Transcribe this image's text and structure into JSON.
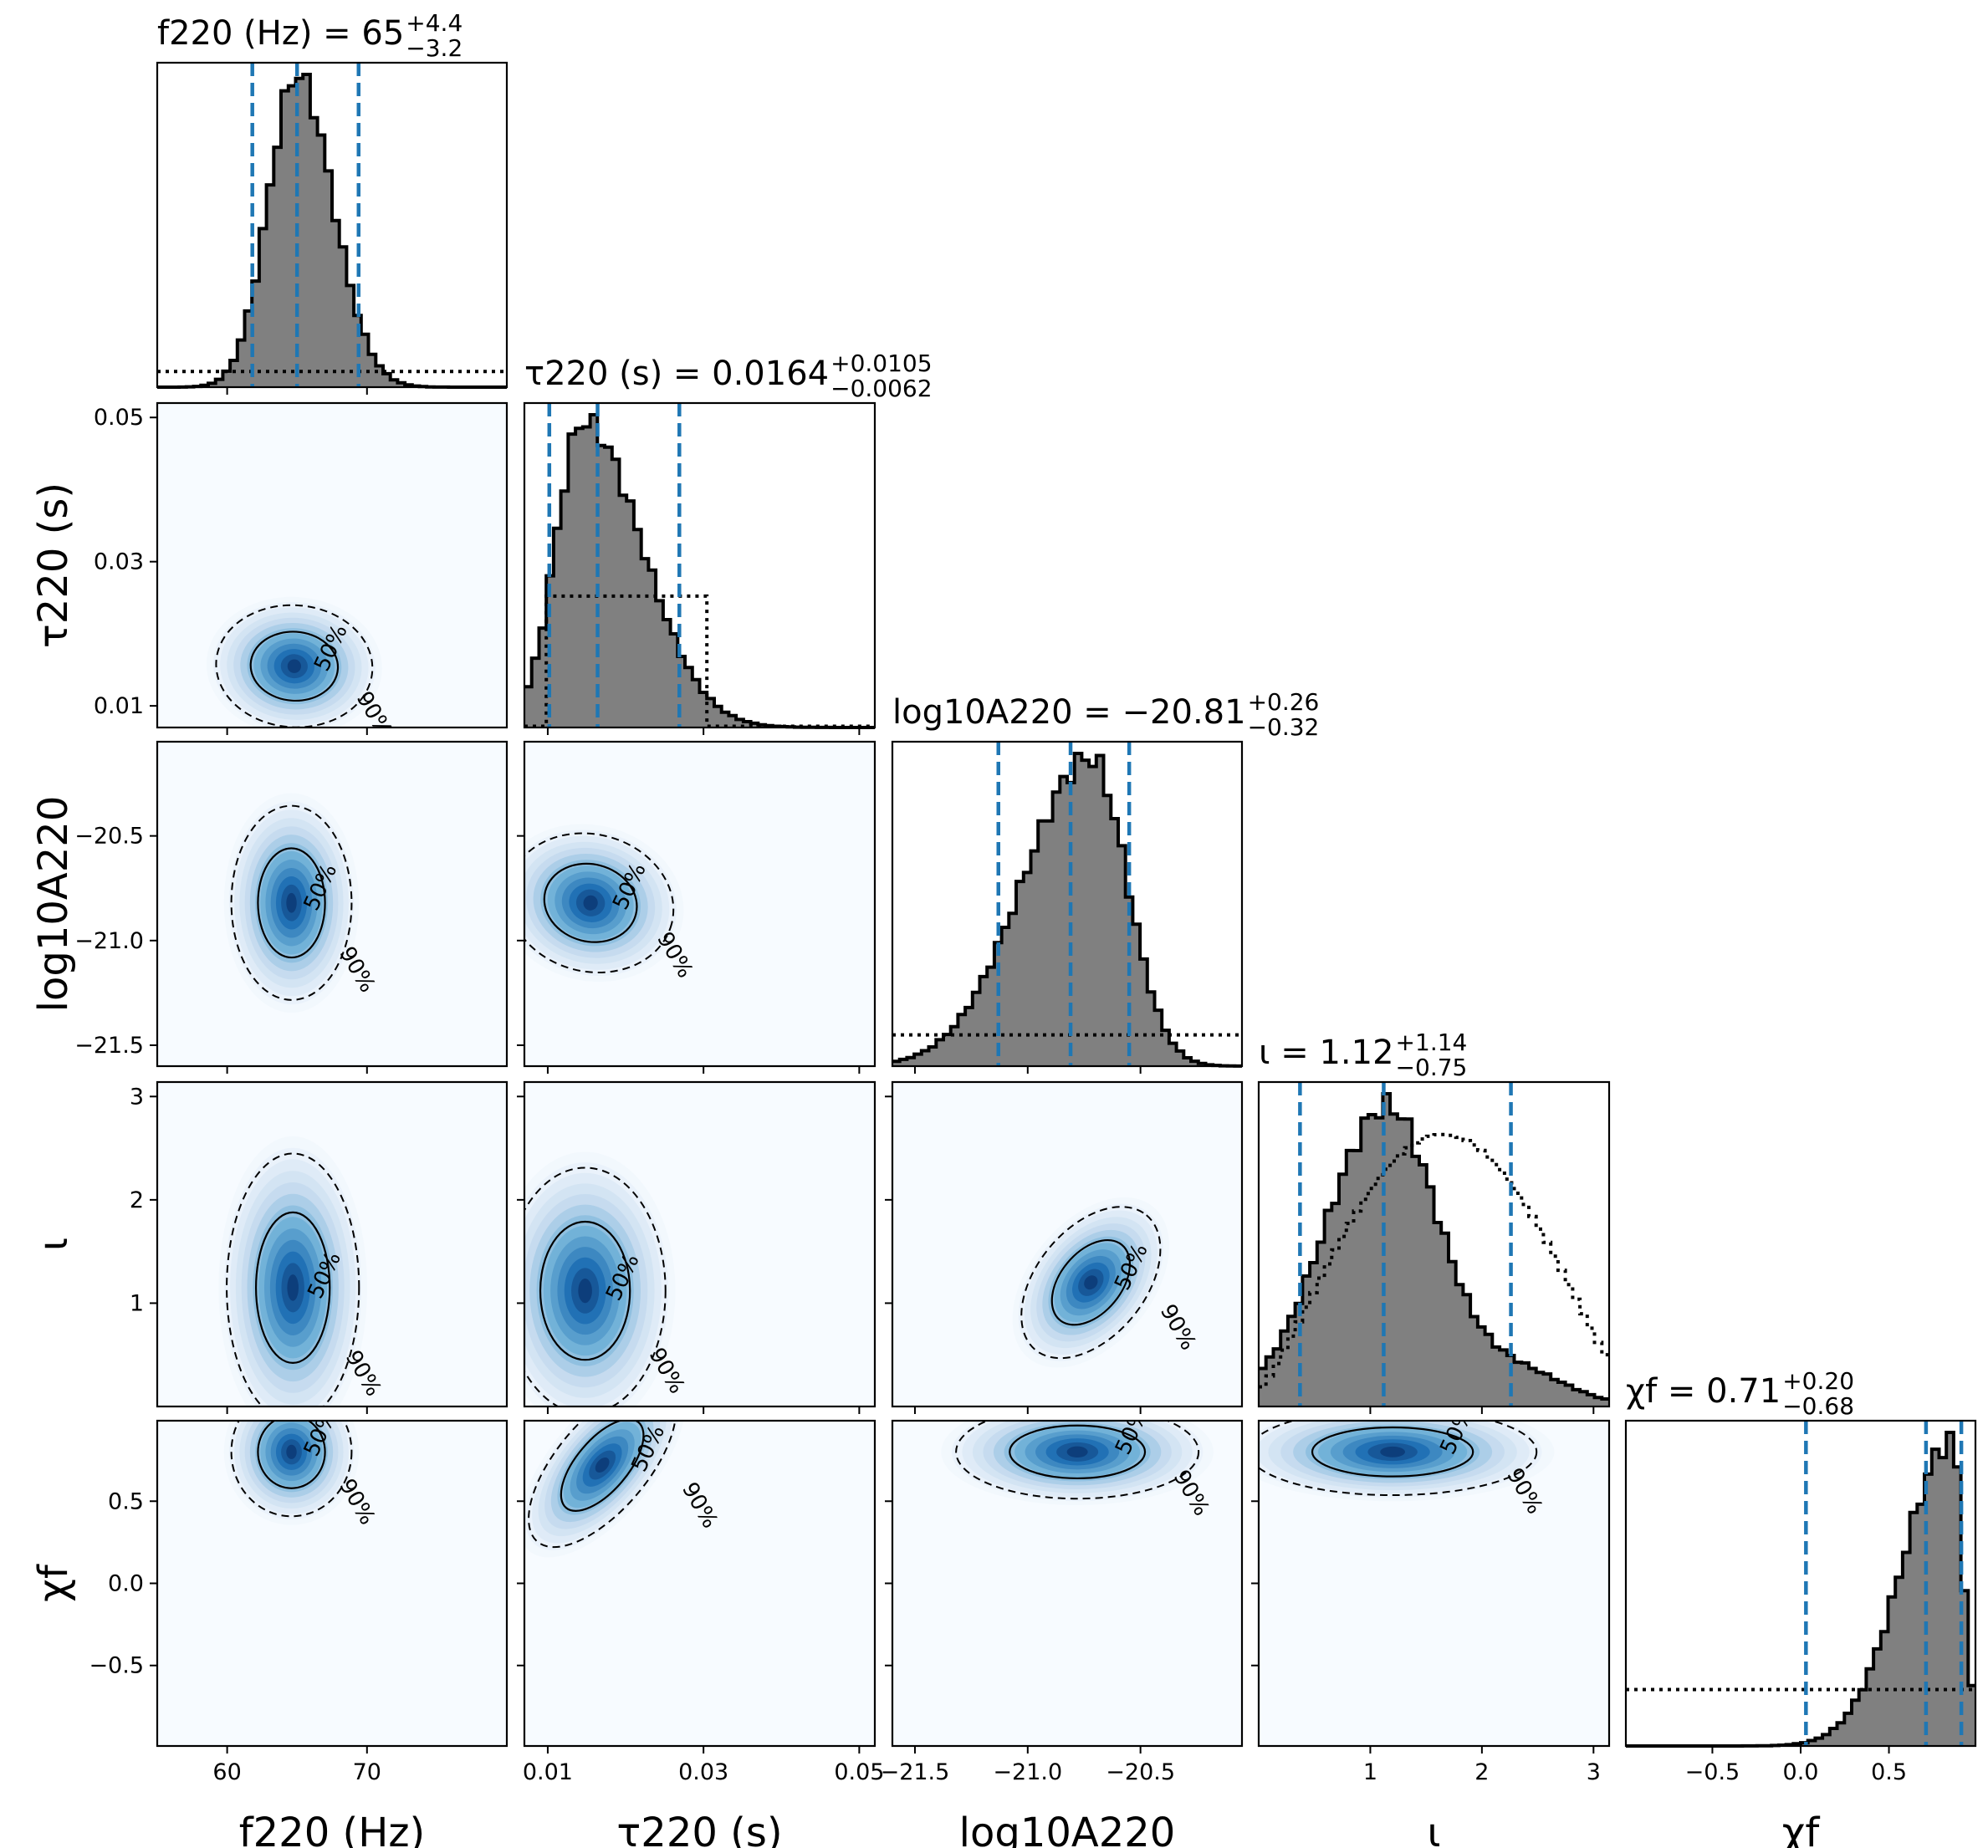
{
  "chart_data": {
    "type": "corner",
    "parameters": [
      {
        "key": "f220",
        "axis_label": "f220 (Hz)",
        "title_name": "f220 (Hz) = 65",
        "median": 65,
        "err_plus": "+4.4",
        "err_minus": "−3.2",
        "range": [
          55,
          80
        ],
        "ticks": [
          60,
          70
        ],
        "tick_labels": [
          "60",
          "70"
        ],
        "quantiles": [
          61.8,
          65,
          69.4
        ]
      },
      {
        "key": "tau220",
        "axis_label": "τ220 (s)",
        "title_name": "τ220 (s) = 0.0164",
        "median": 0.0164,
        "err_plus": "+0.0105",
        "err_minus": "−0.0062",
        "range": [
          0.007,
          0.052
        ],
        "ticks": [
          0.01,
          0.03,
          0.05
        ],
        "tick_labels": [
          "0.01",
          "0.03",
          "0.05"
        ],
        "quantiles": [
          0.0102,
          0.0164,
          0.0269
        ]
      },
      {
        "key": "logA220",
        "axis_label": "log10A220",
        "title_name": "log10A220 = −20.81",
        "median": -20.81,
        "err_plus": "+0.26",
        "err_minus": "−0.32",
        "range": [
          -21.6,
          -20.05
        ],
        "ticks": [
          -21.5,
          -21.0,
          -20.5
        ],
        "tick_labels": [
          "−21.5",
          "−21.0",
          "−20.5"
        ],
        "quantiles": [
          -21.13,
          -20.81,
          -20.55
        ]
      },
      {
        "key": "iota",
        "axis_label": "ι",
        "title_name": "ι = 1.12",
        "median": 1.12,
        "err_plus": "+1.14",
        "err_minus": "−0.75",
        "range": [
          0.0,
          3.14
        ],
        "ticks": [
          1,
          2,
          3
        ],
        "tick_labels": [
          "1",
          "2",
          "3"
        ],
        "quantiles": [
          0.37,
          1.12,
          2.26
        ]
      },
      {
        "key": "chif",
        "axis_label": "χf",
        "title_name": "χf = 0.71",
        "median": 0.71,
        "err_plus": "+0.20",
        "err_minus": "−0.68",
        "range": [
          -0.99,
          0.99
        ],
        "ticks": [
          -0.5,
          0.0,
          0.5
        ],
        "tick_labels": [
          "−0.5",
          "0.0",
          "0.5"
        ],
        "quantiles": [
          0.03,
          0.71,
          0.91
        ]
      }
    ],
    "y_tick_labels": {
      "tau220": [
        "0.01",
        "0.03",
        "0.05"
      ],
      "logA220": [
        "−21.5",
        "−21.0",
        "−20.5"
      ],
      "iota": [
        "1",
        "2",
        "3"
      ],
      "chif": [
        "−0.5",
        "0.0",
        "0.5"
      ]
    },
    "histograms": {
      "f220": {
        "posterior": {
          "mean": 65,
          "sd": 2.3,
          "skew": 0.35
        },
        "prior_density": 0.05
      },
      "tau220": {
        "posterior": {
          "mode": 0.0145,
          "sd_left": 0.0035,
          "sd_right": 0.0075
        },
        "prior_density": 0.42,
        "prior_support": [
          0.0095,
          0.03
        ]
      },
      "logA220": {
        "posterior": {
          "mode": -20.72,
          "sd_left": 0.3,
          "sd_right": 0.16
        },
        "prior_density": 0.1
      },
      "iota": {
        "posterior": {
          "mode": 1.15,
          "sd_left": 0.55,
          "sd_right": 0.45,
          "tail": 0.12
        },
        "prior_shape": "sin"
      },
      "chif": {
        "posterior": {
          "mode": 0.86,
          "sd_left": 0.28,
          "sd_right": 0.06
        },
        "prior_density": 0.18
      }
    },
    "contours": {
      "levels": [
        "50%",
        "90%"
      ],
      "pairs": [
        {
          "x": "f220",
          "y": "tau220",
          "center": [
            64.8,
            0.0155
          ],
          "spread": [
            2.6,
            0.0045
          ],
          "rho": -0.25
        },
        {
          "x": "f220",
          "y": "logA220",
          "center": [
            64.6,
            -20.82
          ],
          "spread": [
            2.0,
            0.22
          ],
          "rho": 0.05
        },
        {
          "x": "tau220",
          "y": "logA220",
          "center": [
            0.0155,
            -20.82
          ],
          "spread": [
            0.005,
            0.2
          ],
          "rho": -0.45
        },
        {
          "x": "f220",
          "y": "iota",
          "center": [
            64.7,
            1.15
          ],
          "spread": [
            2.2,
            0.6
          ],
          "rho": 0.0
        },
        {
          "x": "tau220",
          "y": "iota",
          "center": [
            0.0148,
            1.12
          ],
          "spread": [
            0.0048,
            0.55
          ],
          "rho": 0.0
        },
        {
          "x": "logA220",
          "y": "iota",
          "center": [
            -20.72,
            1.2
          ],
          "spread": [
            0.18,
            0.45
          ],
          "rho": 0.85
        },
        {
          "x": "f220",
          "y": "chif",
          "center": [
            64.6,
            0.8
          ],
          "spread": [
            2.0,
            0.18
          ],
          "rho": 0.0
        },
        {
          "x": "tau220",
          "y": "chif",
          "center": [
            0.017,
            0.72
          ],
          "spread": [
            0.006,
            0.25
          ],
          "rho": 0.9
        },
        {
          "x": "logA220",
          "y": "chif",
          "center": [
            -20.78,
            0.8
          ],
          "spread": [
            0.25,
            0.13
          ],
          "rho": 0.0
        },
        {
          "x": "iota",
          "y": "chif",
          "center": [
            1.2,
            0.8
          ],
          "spread": [
            0.6,
            0.12
          ],
          "rho": 0.0
        }
      ]
    },
    "colors": {
      "histogram_fill": "#808080",
      "histogram_edge": "#000000",
      "quantile_line": "#1f77b4",
      "density_cmap": [
        "#f7fbff",
        "#c6dbef",
        "#6baed6",
        "#2171b5",
        "#08306b"
      ]
    }
  }
}
